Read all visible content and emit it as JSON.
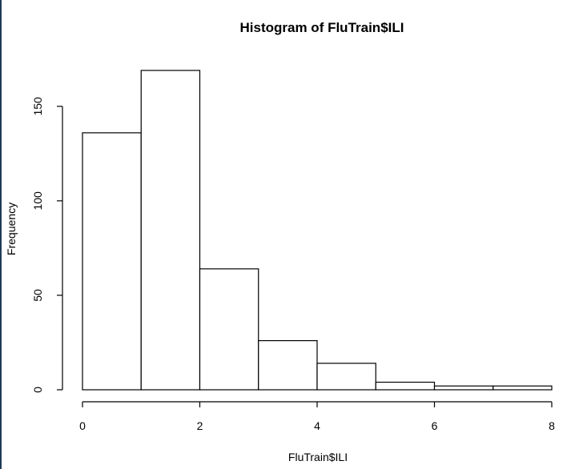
{
  "chart_data": {
    "type": "histogram",
    "title": "Histogram of FluTrain$ILI",
    "xlabel": "FluTrain$ILI",
    "ylabel": "Frequency",
    "bins": [
      {
        "start": 0,
        "end": 1,
        "count": 136
      },
      {
        "start": 1,
        "end": 2,
        "count": 169
      },
      {
        "start": 2,
        "end": 3,
        "count": 64
      },
      {
        "start": 3,
        "end": 4,
        "count": 26
      },
      {
        "start": 4,
        "end": 5,
        "count": 14
      },
      {
        "start": 5,
        "end": 6,
        "count": 4
      },
      {
        "start": 6,
        "end": 7,
        "count": 2
      },
      {
        "start": 7,
        "end": 8,
        "count": 2
      }
    ],
    "x_ticks": [
      "0",
      "2",
      "4",
      "6",
      "8"
    ],
    "y_ticks": [
      "0",
      "50",
      "100",
      "150"
    ],
    "xlim": [
      0,
      8
    ],
    "ylim": [
      0,
      169
    ],
    "grid": false,
    "colors": {
      "bar_fill": "#ffffff",
      "bar_stroke": "#000000",
      "axis": "#000000"
    }
  }
}
